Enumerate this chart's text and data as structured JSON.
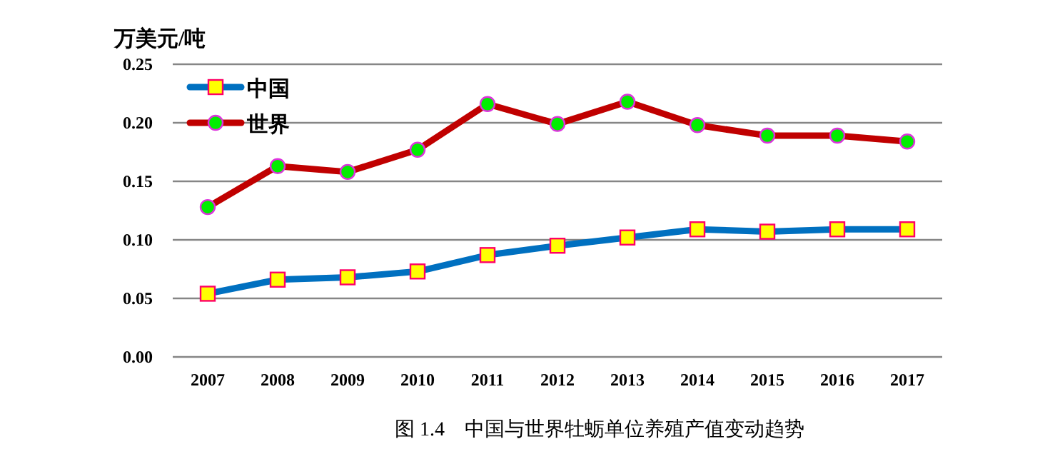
{
  "chart_data": {
    "type": "line",
    "title": "图 1.4　中国与世界牡蛎单位养殖产值变动趋势",
    "ylabel": "万美元/吨",
    "categories": [
      "2007",
      "2008",
      "2009",
      "2010",
      "2011",
      "2012",
      "2013",
      "2014",
      "2015",
      "2016",
      "2017"
    ],
    "ylim": [
      0,
      0.25
    ],
    "yticks": [
      {
        "value": 0,
        "label": "0.00"
      },
      {
        "value": 0.05,
        "label": "0.05"
      },
      {
        "value": 0.1,
        "label": "0.10"
      },
      {
        "value": 0.15,
        "label": "0.15"
      },
      {
        "value": 0.2,
        "label": "0.20"
      },
      {
        "value": 0.25,
        "label": "0.25"
      }
    ],
    "grid": "y",
    "legend": "top left",
    "series": [
      {
        "name": "中国",
        "color": "#0070c0",
        "marker": "square",
        "values": [
          0.054,
          0.066,
          0.068,
          0.073,
          0.087,
          0.095,
          0.102,
          0.109,
          0.107,
          0.109,
          0.109
        ]
      },
      {
        "name": "世界",
        "color": "#c00000",
        "marker": "circle",
        "values": [
          0.128,
          0.163,
          0.158,
          0.177,
          0.216,
          0.199,
          0.218,
          0.198,
          0.189,
          0.189,
          0.184
        ]
      }
    ]
  }
}
